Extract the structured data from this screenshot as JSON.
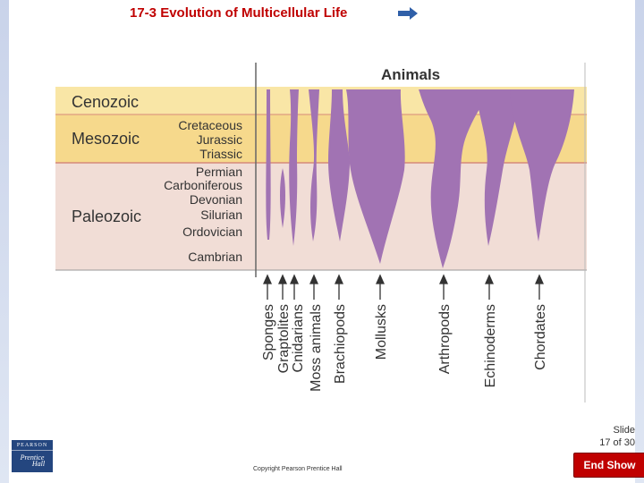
{
  "slide": {
    "title": "17-3 Evolution of Multicellular Life",
    "slide_label": "Slide",
    "slide_number": "17 of 30",
    "copyright": "Copyright Pearson Prentice Hall",
    "end_show": "End Show",
    "logo": {
      "line1": "PEARSON",
      "line2": "Prentice",
      "line3": "Hall"
    }
  },
  "diagram": {
    "header": "Animals",
    "eras": [
      "Cenozoic",
      "Mesozoic",
      "Paleozoic"
    ],
    "periods": [
      "Cretaceous",
      "Jurassic",
      "Triassic",
      "Permian",
      "Carboniferous",
      "Devonian",
      "Silurian",
      "Ordovician",
      "Cambrian"
    ],
    "groups": [
      "Sponges",
      "Graptolites",
      "Cnidarians",
      "Moss animals",
      "Brachiopods",
      "Mollusks",
      "Arthropods",
      "Echinoderms",
      "Chordates"
    ],
    "colors": {
      "cenozoic": "#f9e6a6",
      "mesozoic": "#f6d98c",
      "paleozoic": "#f1ddd6",
      "lineage": "#a173b3",
      "era_line": "#d68a7a"
    }
  }
}
